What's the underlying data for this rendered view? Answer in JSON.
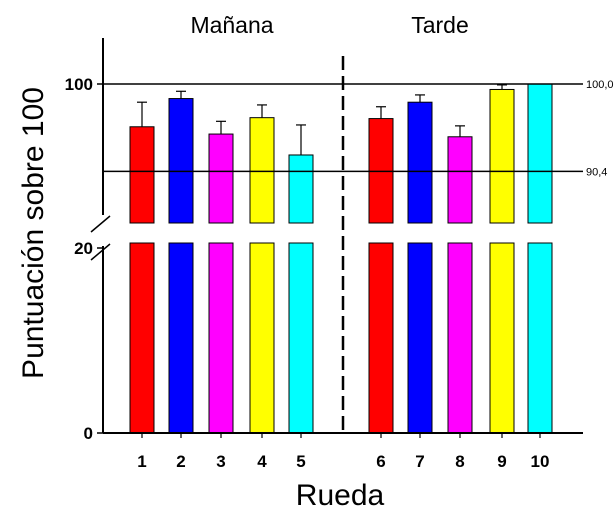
{
  "chart_data": {
    "type": "bar",
    "title": "",
    "xlabel": "Rueda",
    "ylabel": "Puntuación sobre 100",
    "categories": [
      "1",
      "2",
      "3",
      "4",
      "5",
      "6",
      "7",
      "8",
      "9",
      "10"
    ],
    "values": [
      95.3,
      98.4,
      94.5,
      96.3,
      92.2,
      96.2,
      98.0,
      94.2,
      99.4,
      100.0
    ],
    "errors": [
      2.7,
      0.8,
      1.4,
      1.4,
      3.3,
      1.3,
      0.8,
      1.2,
      0.5,
      0.0
    ],
    "colors": [
      "#ff0000",
      "#0000ff",
      "#ff00ff",
      "#ffff00",
      "#00ffff",
      "#ff0000",
      "#0000ff",
      "#ff00ff",
      "#ffff00",
      "#00ffff"
    ],
    "groups": [
      {
        "label": "Mañana",
        "categories": [
          "1",
          "2",
          "3",
          "4",
          "5"
        ]
      },
      {
        "label": "Tarde",
        "categories": [
          "6",
          "7",
          "8",
          "9",
          "10"
        ]
      }
    ],
    "y_ticks": [
      "0",
      "20",
      "100"
    ],
    "ylim_lower": [
      0,
      20
    ],
    "ylim_upper": [
      90,
      100
    ],
    "axis_break": true,
    "reference_lines": [
      {
        "value": 100.0,
        "label": "100,0"
      },
      {
        "value": 90.4,
        "label": "90,4"
      }
    ],
    "grid": false,
    "legend": "none"
  }
}
